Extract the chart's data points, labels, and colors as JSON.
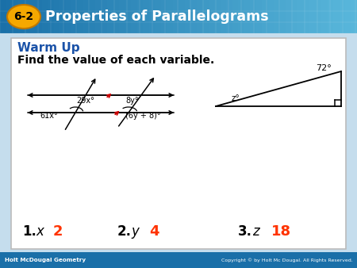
{
  "title_text": "Properties of Parallelograms",
  "badge_text": "6-2",
  "badge_color": "#f5a800",
  "badge_edge": "#c07800",
  "header_bg_left": "#1a6fa8",
  "header_bg_right": "#5ab8d8",
  "title_text_color": "#ffffff",
  "warm_up_label": "Warm Up",
  "warm_up_color": "#1a52a8",
  "subtitle": "Find the value of each variable.",
  "answer1_label": "1.",
  "answer1_var": "x",
  "answer1_val": "2",
  "answer2_label": "2.",
  "answer2_var": "y",
  "answer2_val": "4",
  "answer3_label": "3.",
  "answer3_var": "z",
  "answer3_val": "18",
  "answer_color": "#ff3300",
  "footer_left": "Holt McDougal Geometry",
  "footer_right": "Copyright © by Holt Mc Dougal. All Rights Reserved.",
  "footer_bg": "#1a6fa8",
  "card_bg": "#ffffff",
  "bg_color": "#c5dded",
  "angle_label_29x": "29x°",
  "angle_label_8y": "8y°",
  "angle_label_61x": "61x°",
  "angle_label_6y8": "(6y + 8)°",
  "angle_label_72": "72°",
  "angle_label_z": "z°"
}
